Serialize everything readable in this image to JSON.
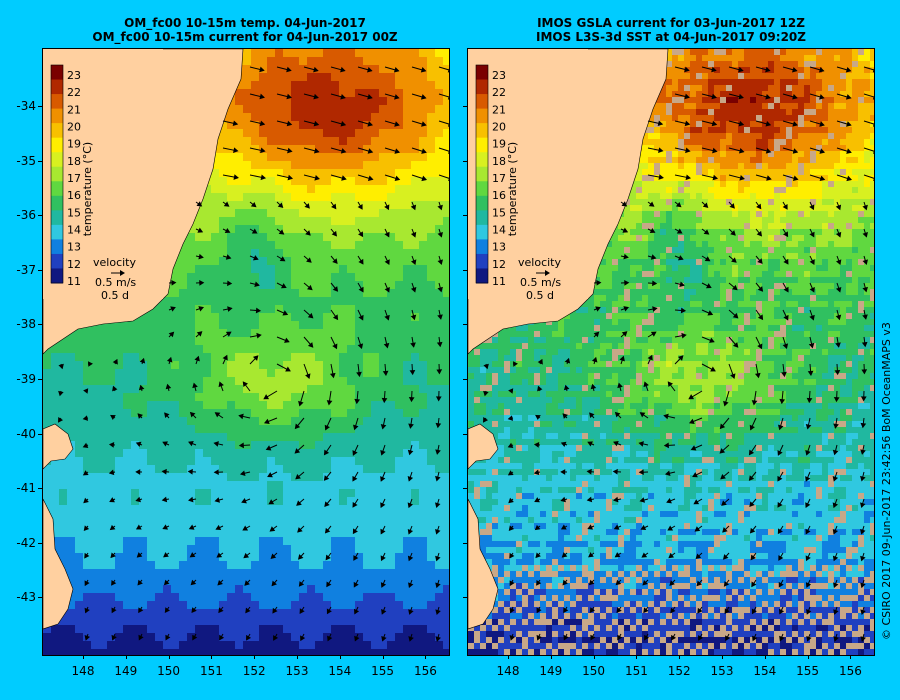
{
  "panels": [
    {
      "title_line1": "OM_fc00 10-15m temp. 04-Jun-2017",
      "title_line2": "OM_fc00 10-15m current for 04-Jun-2017 00Z"
    },
    {
      "title_line1": "IMOS GSLA current for 03-Jun-2017 12Z",
      "title_line2": "IMOS L3S-3d SST at 04-Jun-2017 09:20Z"
    }
  ],
  "legend": {
    "ticks": [
      "23",
      "22",
      "21",
      "20",
      "19",
      "18",
      "17",
      "16",
      "15",
      "14",
      "13",
      "12",
      "11"
    ],
    "label": "temperature (°C)",
    "velocity_label": "velocity",
    "velocity_scale": "0.5 m/s",
    "velocity_time": "0.5 d"
  },
  "y_ticks": [
    "-34",
    "-35",
    "-36",
    "-37",
    "-38",
    "-39",
    "-40",
    "-41",
    "-42",
    "-43"
  ],
  "x_ticks": [
    "148",
    "149",
    "150",
    "151",
    "152",
    "153",
    "154",
    "155",
    "156"
  ],
  "credit": "© CSIRO 2017   09-Jun-2017 23:42:56 BoM OceanMAPS v3",
  "colors": {
    "background": "#00ccff",
    "land": "#ffd0a0",
    "no_data": "#c8a888",
    "scale": [
      "#7a0000",
      "#b02800",
      "#d85a00",
      "#f09000",
      "#f8c000",
      "#ffee00",
      "#d8f020",
      "#a8e830",
      "#60d840",
      "#30c060",
      "#20b8a0",
      "#30c8e0",
      "#1080e0",
      "#2040c0",
      "#101880"
    ]
  }
}
